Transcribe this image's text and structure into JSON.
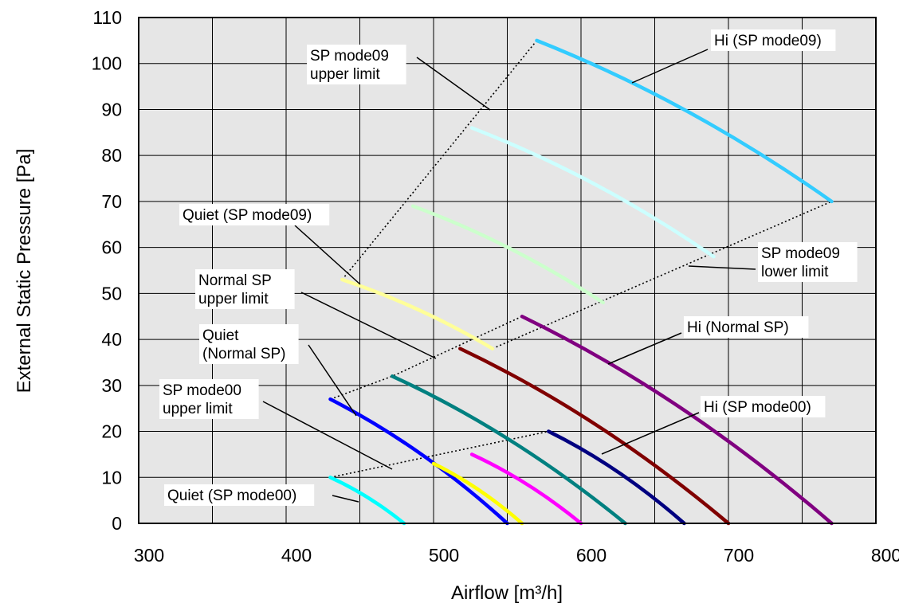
{
  "chart_data": {
    "type": "line",
    "xlabel": "Airflow [m³/h]",
    "ylabel": "External Static Pressure [Pa]",
    "xlim": [
      300,
      800
    ],
    "ylim": [
      0,
      110
    ],
    "x_ticks": [
      300,
      400,
      500,
      600,
      700,
      800
    ],
    "y_ticks": [
      0,
      10,
      20,
      30,
      40,
      50,
      60,
      70,
      80,
      90,
      100,
      110
    ],
    "grid": true,
    "plot_background": "#e6e6e6",
    "series": [
      {
        "color": "#00ffff",
        "x": [
          430,
          480
        ],
        "y": [
          10,
          0
        ]
      },
      {
        "color": "#0000ff",
        "x": [
          430,
          550
        ],
        "y": [
          27,
          0
        ]
      },
      {
        "color": "#ffff00",
        "x": [
          500,
          560
        ],
        "y": [
          13,
          0
        ]
      },
      {
        "color": "#ff00ff",
        "x": [
          526,
          600
        ],
        "y": [
          15,
          0
        ]
      },
      {
        "color": "#008080",
        "x": [
          472,
          630
        ],
        "y": [
          32,
          0
        ]
      },
      {
        "color": "#000080",
        "x": [
          578,
          670
        ],
        "y": [
          20,
          0
        ]
      },
      {
        "color": "#800000",
        "x": [
          518,
          700
        ],
        "y": [
          38,
          0
        ]
      },
      {
        "color": "#800080",
        "x": [
          560,
          770
        ],
        "y": [
          45,
          0
        ]
      },
      {
        "color": "#ffff99",
        "x": [
          438,
          540
        ],
        "y": [
          53,
          38
        ]
      },
      {
        "color": "#ccffcc",
        "x": [
          486,
          615
        ],
        "y": [
          69,
          48
        ]
      },
      {
        "color": "#ccffff",
        "x": [
          526,
          690
        ],
        "y": [
          86,
          58
        ]
      },
      {
        "color": "#33ccff",
        "x": [
          570,
          770
        ],
        "y": [
          105,
          70
        ]
      }
    ],
    "limit_lines": [
      {
        "name": "SP mode00 upper limit",
        "x": [
          430,
          578
        ],
        "y": [
          10,
          20
        ]
      },
      {
        "name": "Normal SP upper limit",
        "x": [
          430,
          472,
          560
        ],
        "y": [
          27,
          32,
          45
        ]
      },
      {
        "name": "SP mode09 lower limit",
        "x": [
          540,
          770
        ],
        "y": [
          38,
          70
        ]
      },
      {
        "name": "SP mode09 upper limit",
        "x": [
          438,
          570
        ],
        "y": [
          53,
          105
        ]
      }
    ],
    "annotations": [
      {
        "text": [
          "Hi (SP mode09)"
        ],
        "box": [
          896,
          40
        ],
        "leader": [
          [
            888,
            62
          ],
          [
            793,
            104
          ]
        ]
      },
      {
        "text": [
          "SP mode09",
          "upper limit"
        ],
        "box": [
          389,
          59
        ],
        "leader": [
          [
            523,
            72
          ],
          [
            615,
            138
          ]
        ]
      },
      {
        "text": [
          "Quiet (SP mode09)"
        ],
        "box": [
          229,
          259
        ],
        "leader": [
          [
            370,
            283
          ],
          [
            452,
            357
          ]
        ]
      },
      {
        "text": [
          "SP mode09",
          "lower limit"
        ],
        "box": [
          955,
          307
        ],
        "leader": [
          [
            948,
            338
          ],
          [
            864,
            334
          ]
        ]
      },
      {
        "text": [
          "Normal SP",
          "upper limit"
        ],
        "box": [
          249,
          341
        ],
        "leader": [
          [
            378,
            367
          ],
          [
            547,
            450
          ]
        ]
      },
      {
        "text": [
          "Hi (Normal SP)"
        ],
        "box": [
          862,
          400
        ],
        "leader": [
          [
            855,
            418
          ],
          [
            763,
            457
          ]
        ]
      },
      {
        "text": [
          "Quiet",
          "(Normal SP)"
        ],
        "box": [
          254,
          410
        ],
        "leader": [
          [
            387,
            433
          ],
          [
            447,
            522
          ]
        ]
      },
      {
        "text": [
          "SP mode00",
          "upper limit"
        ],
        "box": [
          204,
          479
        ],
        "leader": [
          [
            330,
            504
          ],
          [
            492,
            589
          ]
        ]
      },
      {
        "text": [
          "Hi (SP mode00)"
        ],
        "box": [
          883,
          500
        ],
        "leader": [
          [
            877,
            518
          ],
          [
            755,
            570
          ]
        ]
      },
      {
        "text": [
          "Quiet (SP mode00)"
        ],
        "box": [
          210,
          611
        ],
        "leader": [
          [
            417,
            622
          ],
          [
            450,
            630
          ]
        ]
      }
    ]
  }
}
